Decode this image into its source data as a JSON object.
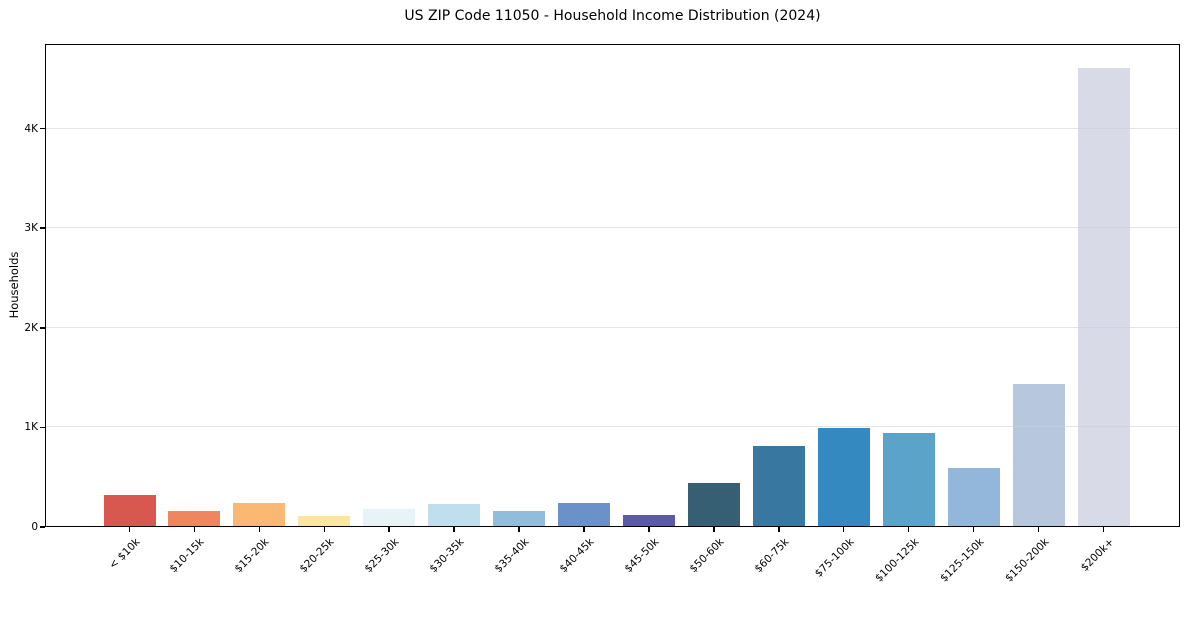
{
  "chart_data": {
    "type": "bar",
    "title": "US ZIP Code 11050 - Household Income Distribution (2024)",
    "xlabel": "",
    "ylabel": "Households",
    "categories": [
      "< $10k",
      "$10-15k",
      "$15-20k",
      "$20-25k",
      "$25-30k",
      "$30-35k",
      "$35-40k",
      "$40-45k",
      "$45-50k",
      "$50-60k",
      "$60-75k",
      "$75-100k",
      "$100-125k",
      "$125-150k",
      "$150-200k",
      "$200k+"
    ],
    "values": [
      320,
      160,
      240,
      110,
      180,
      230,
      160,
      240,
      120,
      440,
      810,
      990,
      940,
      590,
      1440,
      4610
    ],
    "bar_colors": [
      "#d8574e",
      "#f08660",
      "#fab873",
      "#fbe5a6",
      "#e7f3f6",
      "#bedfeb",
      "#92bcdb",
      "#6b92c8",
      "#5a5aa8",
      "#375f74",
      "#3878a0",
      "#3389c0",
      "#5ba3c9",
      "#92b7da",
      "#b7c7de",
      "#d8dae8"
    ],
    "ylim": [
      0,
      4850
    ],
    "yticks": [
      {
        "value": 0,
        "label": "0"
      },
      {
        "value": 1000,
        "label": "1K"
      },
      {
        "value": 2000,
        "label": "2K"
      },
      {
        "value": 3000,
        "label": "3K"
      },
      {
        "value": 4000,
        "label": "4K"
      }
    ],
    "grid": true,
    "grid_color": "#e7e7e7",
    "legend_position": "none",
    "background": "#ffffff",
    "spine_color": "#000000"
  }
}
